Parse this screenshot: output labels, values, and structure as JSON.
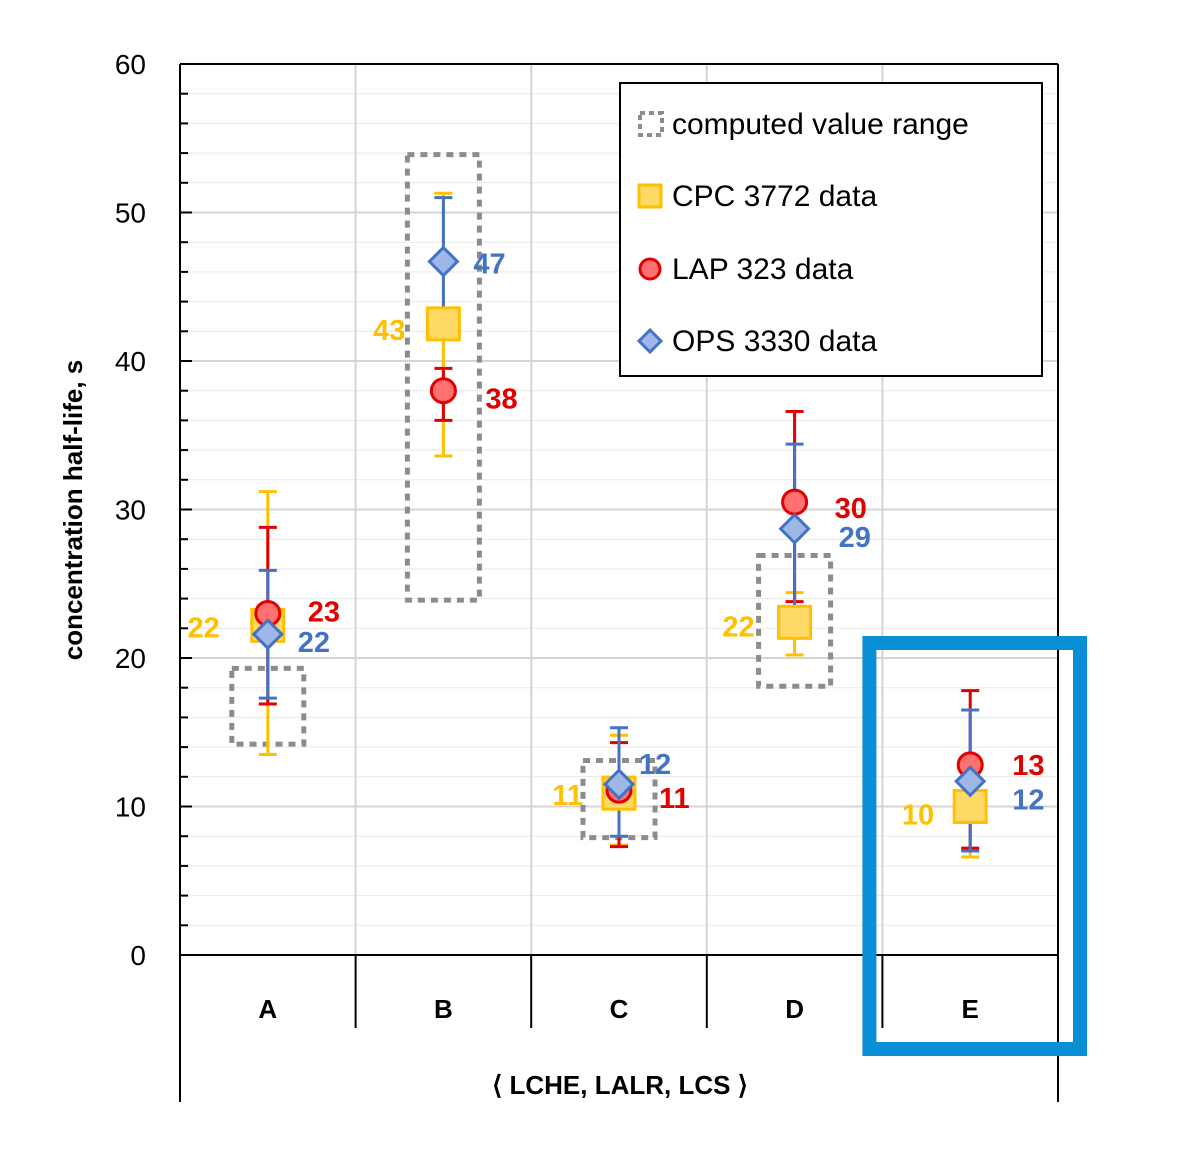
{
  "chart_data": {
    "type": "scatter",
    "title": "",
    "xlabel": "⟨ LCHE, LALR, LCS ⟩",
    "ylabel": "concentration half-life, s",
    "ylim": [
      0,
      60
    ],
    "yticks": [
      "0",
      "10",
      "20",
      "30",
      "40",
      "50",
      "60"
    ],
    "categories": [
      "A",
      "B",
      "C",
      "D",
      "E"
    ],
    "grid": true,
    "legend_position": "top-right",
    "legend": {
      "computed_range_label": "computed value range",
      "series_labels": [
        "CPC 3772 data",
        "LAP 323 data",
        "OPS 3330 data"
      ]
    },
    "computed_value_range": [
      {
        "category": "A",
        "min": 14.2,
        "max": 19.3
      },
      {
        "category": "B",
        "min": 23.9,
        "max": 53.9
      },
      {
        "category": "C",
        "min": 7.9,
        "max": 13.1
      },
      {
        "category": "D",
        "min": 18.1,
        "max": 26.9
      }
    ],
    "series": [
      {
        "name": "CPC 3772 data",
        "marker": "square",
        "color": "#FFC000",
        "fill": "#FFD966",
        "label_color": "#FFC000",
        "points": [
          {
            "category": "A",
            "y": 22.2,
            "err_low": 13.5,
            "err_high": 31.2,
            "label": "22"
          },
          {
            "category": "B",
            "y": 42.5,
            "err_low": 33.6,
            "err_high": 51.3,
            "label": "43"
          },
          {
            "category": "C",
            "y": 10.9,
            "err_low": 7.4,
            "err_high": 14.8,
            "label": "11"
          },
          {
            "category": "D",
            "y": 22.4,
            "err_low": 20.2,
            "err_high": 24.4,
            "label": "22"
          },
          {
            "category": "E",
            "y": 10.0,
            "err_low": 6.6,
            "err_high": 13.4,
            "label": "10"
          }
        ]
      },
      {
        "name": "LAP 323 data",
        "marker": "circle",
        "color": "#E00000",
        "fill": "#FF7070",
        "label_color": "#E00000",
        "points": [
          {
            "category": "A",
            "y": 23.0,
            "err_low": 16.9,
            "err_high": 28.8,
            "label": "23"
          },
          {
            "category": "B",
            "y": 38.0,
            "err_low": 36.0,
            "err_high": 39.5,
            "label": "38"
          },
          {
            "category": "C",
            "y": 11.1,
            "err_low": 7.3,
            "err_high": 14.3,
            "label": "11"
          },
          {
            "category": "D",
            "y": 30.5,
            "err_low": 23.8,
            "err_high": 36.6,
            "label": "30"
          },
          {
            "category": "E",
            "y": 12.8,
            "err_low": 7.2,
            "err_high": 17.8,
            "label": "13"
          }
        ]
      },
      {
        "name": "OPS 3330 data",
        "marker": "diamond",
        "color": "#4472C4",
        "fill": "#9DB8E6",
        "label_color": "#4472C4",
        "points": [
          {
            "category": "A",
            "y": 21.6,
            "err_low": 17.3,
            "err_high": 25.9,
            "label": "22"
          },
          {
            "category": "B",
            "y": 46.7,
            "err_low": 42.3,
            "err_high": 51.0,
            "label": "47"
          },
          {
            "category": "C",
            "y": 11.5,
            "err_low": 8.0,
            "err_high": 15.3,
            "label": "12"
          },
          {
            "category": "D",
            "y": 28.7,
            "err_low": 22.8,
            "err_high": 34.4,
            "label": "29"
          },
          {
            "category": "E",
            "y": 11.7,
            "err_low": 7.0,
            "err_high": 16.5,
            "label": "12"
          }
        ]
      }
    ],
    "highlight": {
      "category": "E",
      "color": "#0A8FD6"
    }
  }
}
